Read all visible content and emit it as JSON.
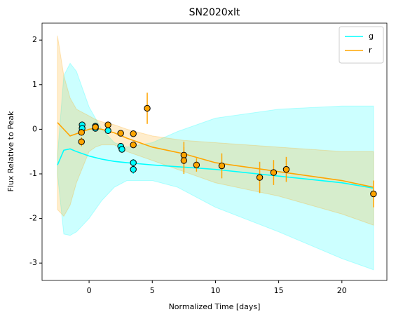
{
  "chart_data": {
    "type": "line",
    "title": "SN2020xlt",
    "x_label": "Normalized Time [days]",
    "y_label": "Flux Relative to Peak",
    "xlim": [
      -3.72,
      23.56
    ],
    "ylim": [
      -3.39,
      2.38
    ],
    "xticks": [
      0,
      5,
      10,
      15,
      20
    ],
    "yticks": [
      -3,
      -2,
      -1,
      0,
      1,
      2
    ],
    "legend": "upper right",
    "series": [
      {
        "name": "g",
        "color": "#00ffff",
        "x": [
          -2.5,
          -2,
          -1.5,
          -1,
          0,
          1,
          2,
          3,
          5,
          7,
          10,
          15,
          20,
          22.5
        ],
        "values": [
          -0.8,
          -0.47,
          -0.44,
          -0.5,
          -0.6,
          -0.67,
          -0.72,
          -0.75,
          -0.8,
          -0.84,
          -0.9,
          -1.05,
          -1.2,
          -1.32
        ],
        "upper": [
          -0.6,
          1.2,
          1.48,
          1.3,
          0.5,
          0.0,
          -0.3,
          -0.4,
          -0.3,
          -0.05,
          0.25,
          0.45,
          0.52,
          0.52
        ],
        "lower": [
          -1.0,
          -2.35,
          -2.38,
          -2.3,
          -2.0,
          -1.6,
          -1.3,
          -1.15,
          -1.15,
          -1.3,
          -1.75,
          -2.3,
          -2.9,
          -3.15
        ],
        "points": {
          "x": [
            -0.55,
            -0.55,
            0.5,
            0.5,
            1.5,
            2.5,
            2.6,
            3.5,
            3.5
          ],
          "values": [
            0.1,
            0.02,
            0.07,
            0.02,
            -0.03,
            -0.38,
            -0.45,
            -0.75,
            -0.9
          ],
          "errors": [
            0.03,
            0.03,
            0.03,
            0.03,
            0.03,
            0.04,
            0.04,
            0.08,
            0.1
          ]
        }
      },
      {
        "name": "r",
        "color": "#ffa500",
        "x": [
          -2.5,
          -2,
          -1.5,
          -1,
          0,
          0.5,
          1,
          2,
          3,
          5,
          7.5,
          10,
          15,
          20,
          22.5
        ],
        "values": [
          0.15,
          0.0,
          -0.15,
          -0.1,
          0.0,
          0.02,
          0.0,
          -0.08,
          -0.2,
          -0.4,
          -0.55,
          -0.75,
          -0.95,
          -1.15,
          -1.3
        ],
        "upper": [
          2.1,
          1.2,
          0.7,
          0.45,
          0.3,
          0.22,
          0.17,
          0.1,
          0.0,
          -0.15,
          -0.25,
          -0.3,
          -0.4,
          -0.5,
          -0.5
        ],
        "lower": [
          -1.8,
          -1.95,
          -1.7,
          -1.2,
          -0.5,
          -0.4,
          -0.35,
          -0.35,
          -0.5,
          -0.7,
          -0.95,
          -1.2,
          -1.5,
          -1.9,
          -2.15
        ],
        "points": {
          "x": [
            -0.6,
            -0.6,
            0.5,
            1.5,
            2.5,
            3.5,
            3.5,
            4.6,
            7.5,
            7.5,
            8.5,
            10.5,
            13.5,
            14.6,
            15.6,
            22.5
          ],
          "values": [
            -0.07,
            -0.28,
            0.05,
            0.1,
            -0.09,
            -0.1,
            -0.35,
            0.47,
            -0.58,
            -0.7,
            -0.8,
            -0.82,
            -1.08,
            -0.97,
            -0.9,
            -1.45
          ],
          "errors": [
            0.05,
            0.1,
            0.05,
            0.05,
            0.05,
            0.05,
            0.05,
            0.35,
            0.3,
            0.3,
            0.15,
            0.28,
            0.35,
            0.28,
            0.28,
            0.3
          ]
        }
      }
    ]
  }
}
